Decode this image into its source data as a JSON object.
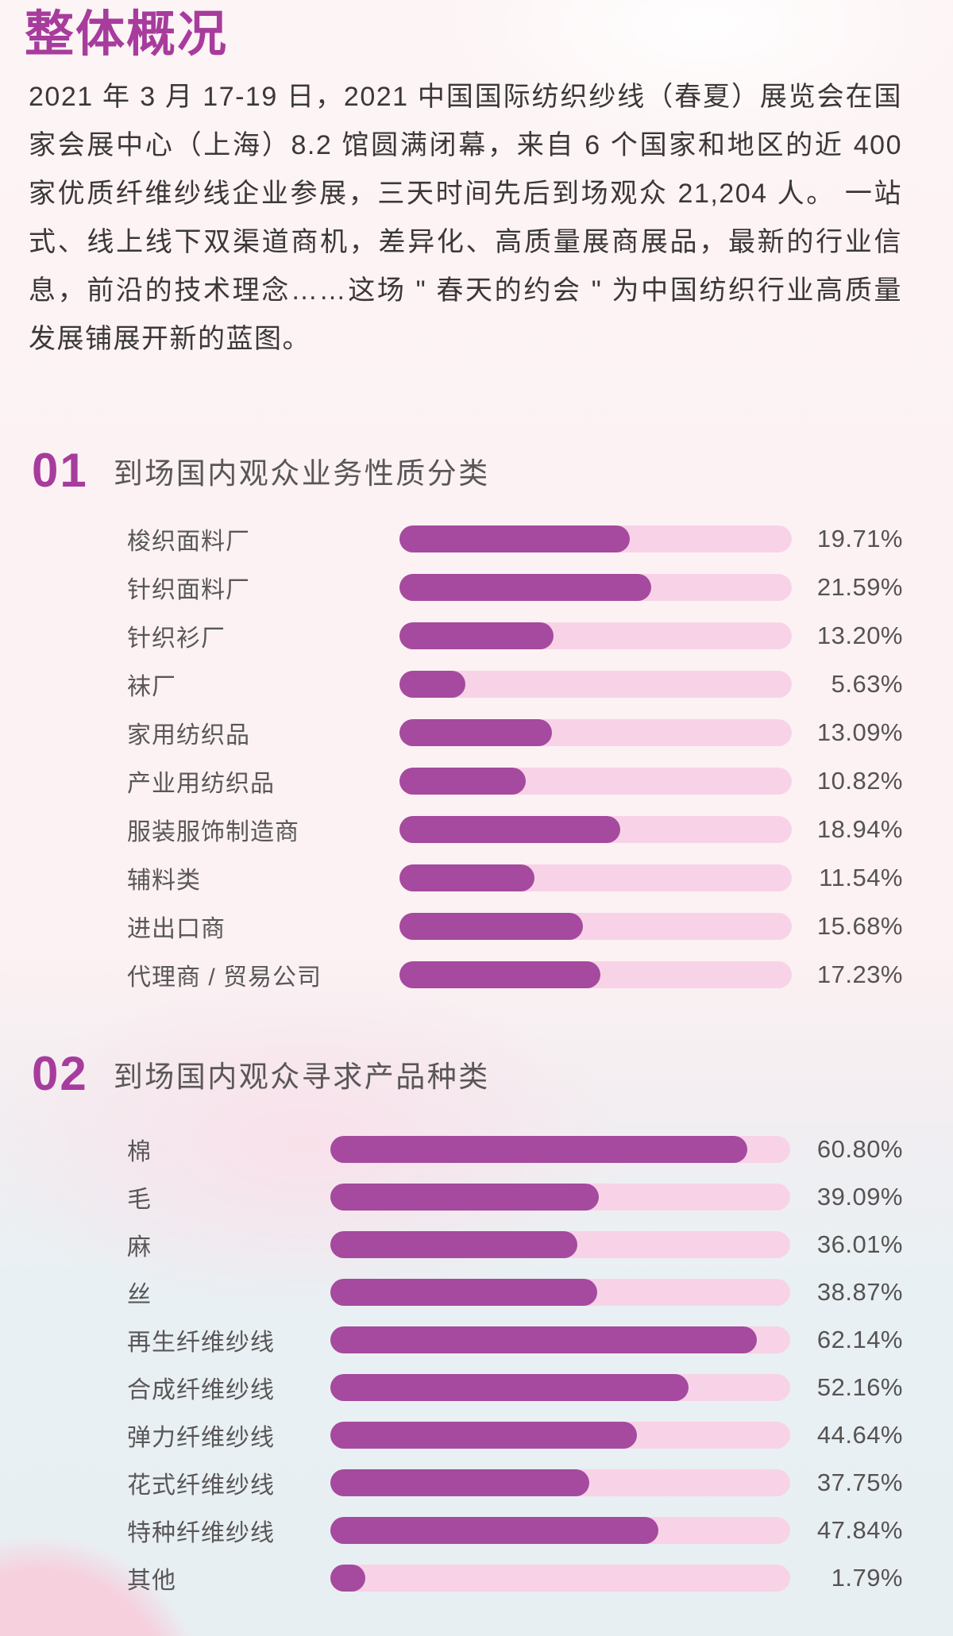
{
  "header": {
    "title": "整体概况",
    "intro": "2021 年 3 月 17-19 日，2021 中国国际纺织纱线（春夏）展览会在国家会展中心（上海）8.2 馆圆满闭幕，来自 6 个国家和地区的近 400 家优质纤维纱线企业参展，三天时间先后到场观众 21,204 人。 一站式、线上线下双渠道商机，差异化、高质量展商展品，最新的行业信息，前沿的技术理念……这场 \" 春天的约会 \" 为中国纺织行业高质量发展铺展开新的蓝图。"
  },
  "colors": {
    "accent": "#a73c9d",
    "bar_fill": "#a54a9e",
    "bar_track": "#f8d3e7",
    "text_dark": "#3b3837",
    "text_gray": "#595757",
    "text_value": "#565353"
  },
  "chart_data": [
    {
      "type": "bar",
      "orientation": "horizontal",
      "section_number": "01",
      "title": "到场国内观众业务性质分类",
      "unit": "%",
      "categories": [
        "梭织面料厂",
        "针织面料厂",
        "针织衫厂",
        "袜厂",
        "家用纺织品",
        "产业用纺织品",
        "服装服饰制造商",
        "辅料类",
        "进出口商",
        "代理商 / 贸易公司"
      ],
      "values": [
        19.71,
        21.59,
        13.2,
        5.63,
        13.09,
        10.82,
        18.94,
        11.54,
        15.68,
        17.23
      ],
      "xlim": [
        0,
        33.6
      ],
      "grid": false,
      "legend": false,
      "value_labels_position": "right"
    },
    {
      "type": "bar",
      "orientation": "horizontal",
      "section_number": "02",
      "title": "到场国内观众寻求产品种类",
      "unit": "%",
      "categories": [
        "棉",
        "毛",
        "麻",
        "丝",
        "再生纤维纱线",
        "合成纤维纱线",
        "弹力纤维纱线",
        "花式纤维纱线",
        "特种纤维纱线",
        "其他"
      ],
      "values": [
        60.8,
        39.09,
        36.01,
        38.87,
        62.14,
        52.16,
        44.64,
        37.75,
        47.84,
        1.79
      ],
      "xlim": [
        0,
        67
      ],
      "grid": false,
      "legend": false,
      "value_labels_position": "right"
    }
  ]
}
